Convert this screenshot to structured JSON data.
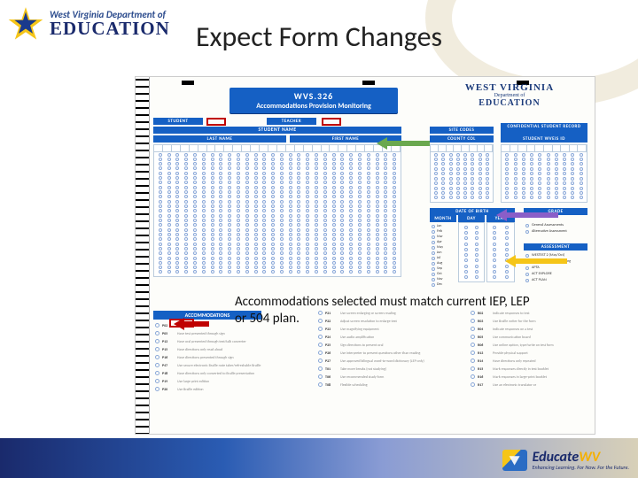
{
  "logo": {
    "line1": "West Virginia Department of",
    "line2": "EDUCATION",
    "star_color_outer": "#f5c518",
    "star_color_inner": "#1a3a8c"
  },
  "slide_title": "Expect Form Changes",
  "form": {
    "wvs_header": {
      "code": "WVS.326",
      "subtitle": "Accommodations Provision Monitoring"
    },
    "wv_header": {
      "l1": "WEST VIRGINIA",
      "l2": "Department of",
      "l3": "EDUCATION"
    },
    "sections": {
      "student": "STUDENT",
      "teacher": "TEACHER",
      "student_name": "STUDENT NAME",
      "last_name": "LAST NAME",
      "first_name": "FIRST NAME",
      "site_codes": "SITE CODES",
      "county_col": "COUNTY COL",
      "confidential": "CONFIDENTIAL STUDENT RECORD",
      "student_wveis": "STUDENT WVEIS ID",
      "dob": "DATE OF BIRTH",
      "month": "MONTH",
      "day": "DAY",
      "year": "YEAR",
      "grade": "GRADE",
      "general": "General Assessments",
      "alt": "Alternative Assessment",
      "assessment": "ASSESSMENT",
      "accommodations": "ACCOMMODATIONS"
    },
    "months": [
      "Jan",
      "Feb",
      "Mar",
      "Apr",
      "May",
      "Jun",
      "Jul",
      "Aug",
      "Sep",
      "Oct",
      "Nov",
      "Dec"
    ],
    "assessment_items": [
      "WESTEST 2 (May/Oct)",
      "WESTEST 2 Online Writing",
      "APTA",
      "ACT EXPLORE",
      "ACT PLAN"
    ],
    "p_left": [
      {
        "id": "P02",
        "t": "Read aloud questions"
      },
      {
        "id": "P05",
        "t": "Have test presented through sign"
      },
      {
        "id": "P13",
        "t": "Have oral presented through text/talk converter"
      },
      {
        "id": "P15",
        "t": "Have directions only read aloud"
      },
      {
        "id": "P16",
        "t": "Have directions presented through sign"
      },
      {
        "id": "P47",
        "t": "Use secure electronic Braille note taker/refreshable Braille"
      },
      {
        "id": "P18",
        "t": "Have directions only converted to Braille presentation"
      },
      {
        "id": "P19",
        "t": "Use large print edition"
      },
      {
        "id": "P20",
        "t": "Use Braille edition"
      }
    ],
    "p_mid": [
      {
        "id": "P21",
        "t": "Use screen enlarging or screen reading"
      },
      {
        "id": "P22",
        "t": "Adjust screen resolution to enlarge text"
      },
      {
        "id": "P23",
        "t": "Use magnifying equipment"
      },
      {
        "id": "P24",
        "t": "Use audio amplification"
      },
      {
        "id": "P25",
        "t": "Sign directions to present oral"
      },
      {
        "id": "P26",
        "t": "Use interpreter to present questions other than reading"
      },
      {
        "id": "P27",
        "t": "Use approved bilingual word-to-word dictionary (LEP only)"
      },
      {
        "id": "T01",
        "t": "Take more breaks (not studying)"
      },
      {
        "id": "T06",
        "t": "Use recommended study form"
      },
      {
        "id": "T08",
        "t": "Flexible scheduling"
      }
    ],
    "r_right": [
      {
        "id": "R02",
        "t": "Indicate responses to test"
      },
      {
        "id": "R03",
        "t": "Use Braille writer for the form"
      },
      {
        "id": "R04",
        "t": "Indicate responses on a test"
      },
      {
        "id": "R05",
        "t": "Use communication board"
      },
      {
        "id": "R06",
        "t": "Use online option, type/write on test form"
      },
      {
        "id": "R13",
        "t": "Provide physical support"
      },
      {
        "id": "R14",
        "t": "Have directions only repeated"
      },
      {
        "id": "R15",
        "t": "Mark responses directly in test booklet"
      },
      {
        "id": "R16",
        "t": "Mark responses in large-print booklet"
      },
      {
        "id": "R17",
        "t": "Use an electronic translator or"
      }
    ]
  },
  "overlay_text_1": "Accommodations selected must match current IEP, LEP",
  "overlay_text_2": "or 504 plan.",
  "educatewv": {
    "brand_a": "Educate",
    "brand_b": "WV",
    "tag": "Enhancing Learning. For Now. For the Future."
  },
  "colors": {
    "wvs_blue": "#1560c4",
    "red": "#c00000",
    "green_arrow": "#6aa84f",
    "purple_arrow": "#8a5ec8",
    "yellow_arrow": "#f5c518"
  }
}
